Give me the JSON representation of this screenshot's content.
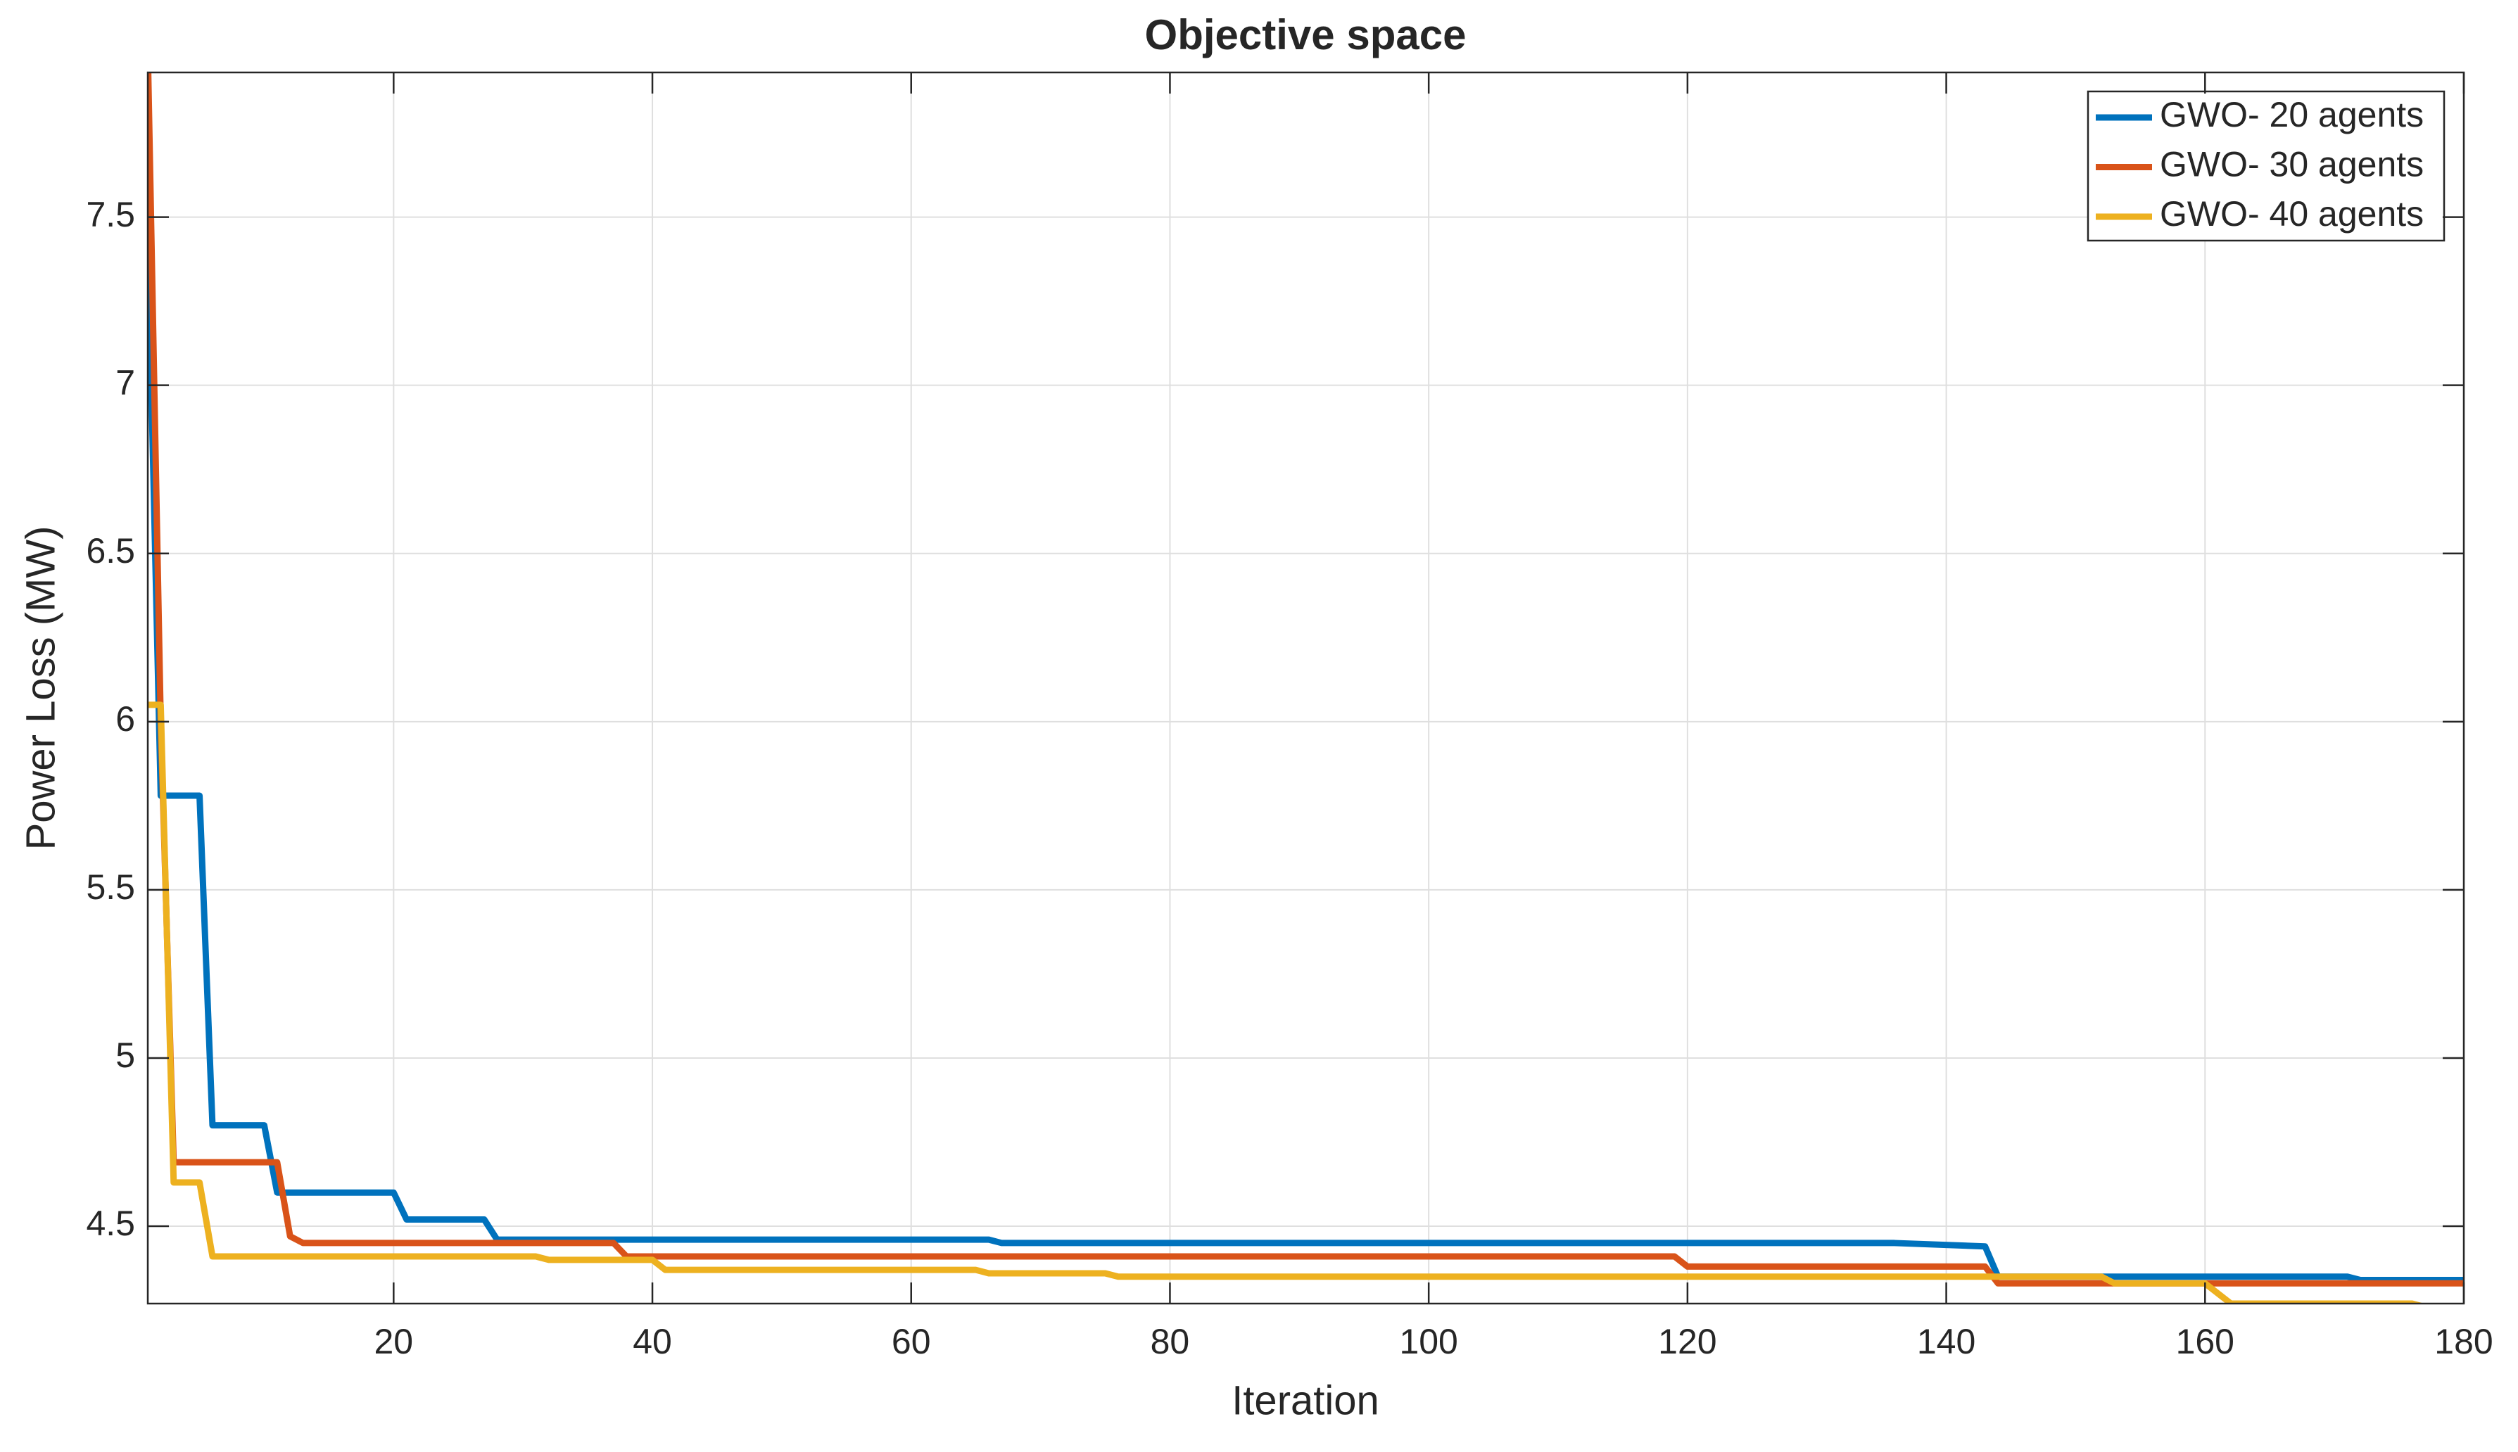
{
  "chart_data": {
    "type": "line",
    "title": "Objective space",
    "x_label": "Iteration",
    "y_label": "Power Loss (MW)",
    "xlim": [
      1,
      180
    ],
    "xticks": [
      20,
      40,
      60,
      80,
      100,
      120,
      140,
      160,
      180
    ],
    "ylim": [
      4.27,
      7.93
    ],
    "yticks": [
      4.5,
      5,
      5.5,
      6,
      6.5,
      7,
      7.5
    ],
    "grid": true,
    "legend": "upper right",
    "series": [
      {
        "name": "GWO- 20 agents",
        "color": "#0072bd",
        "x": [
          1,
          2,
          5,
          6,
          10,
          11,
          20,
          21,
          27,
          28,
          66,
          67,
          136,
          143,
          144,
          171,
          172,
          180
        ],
        "values": [
          7.46,
          5.78,
          5.78,
          4.8,
          4.8,
          4.6,
          4.6,
          4.52,
          4.52,
          4.46,
          4.46,
          4.45,
          4.45,
          4.44,
          4.35,
          4.35,
          4.34,
          4.34
        ]
      },
      {
        "name": "GWO- 30 agents",
        "color": "#d95319",
        "x": [
          1,
          2,
          3,
          11,
          12,
          13,
          37,
          38,
          119,
          120,
          143,
          144,
          180
        ],
        "values": [
          8.0,
          6.0,
          4.69,
          4.69,
          4.47,
          4.45,
          4.45,
          4.41,
          4.41,
          4.38,
          4.38,
          4.33,
          4.33
        ]
      },
      {
        "name": "GWO- 40 agents",
        "color": "#edb120",
        "x": [
          1,
          2,
          3,
          5,
          6,
          31,
          32,
          40,
          41,
          65,
          66,
          75,
          76,
          152,
          153,
          160,
          162,
          176,
          177,
          180
        ],
        "values": [
          6.05,
          6.05,
          4.63,
          4.63,
          4.41,
          4.41,
          4.4,
          4.4,
          4.37,
          4.37,
          4.36,
          4.36,
          4.35,
          4.35,
          4.33,
          4.33,
          4.27,
          4.27,
          4.26,
          4.26
        ]
      }
    ]
  }
}
